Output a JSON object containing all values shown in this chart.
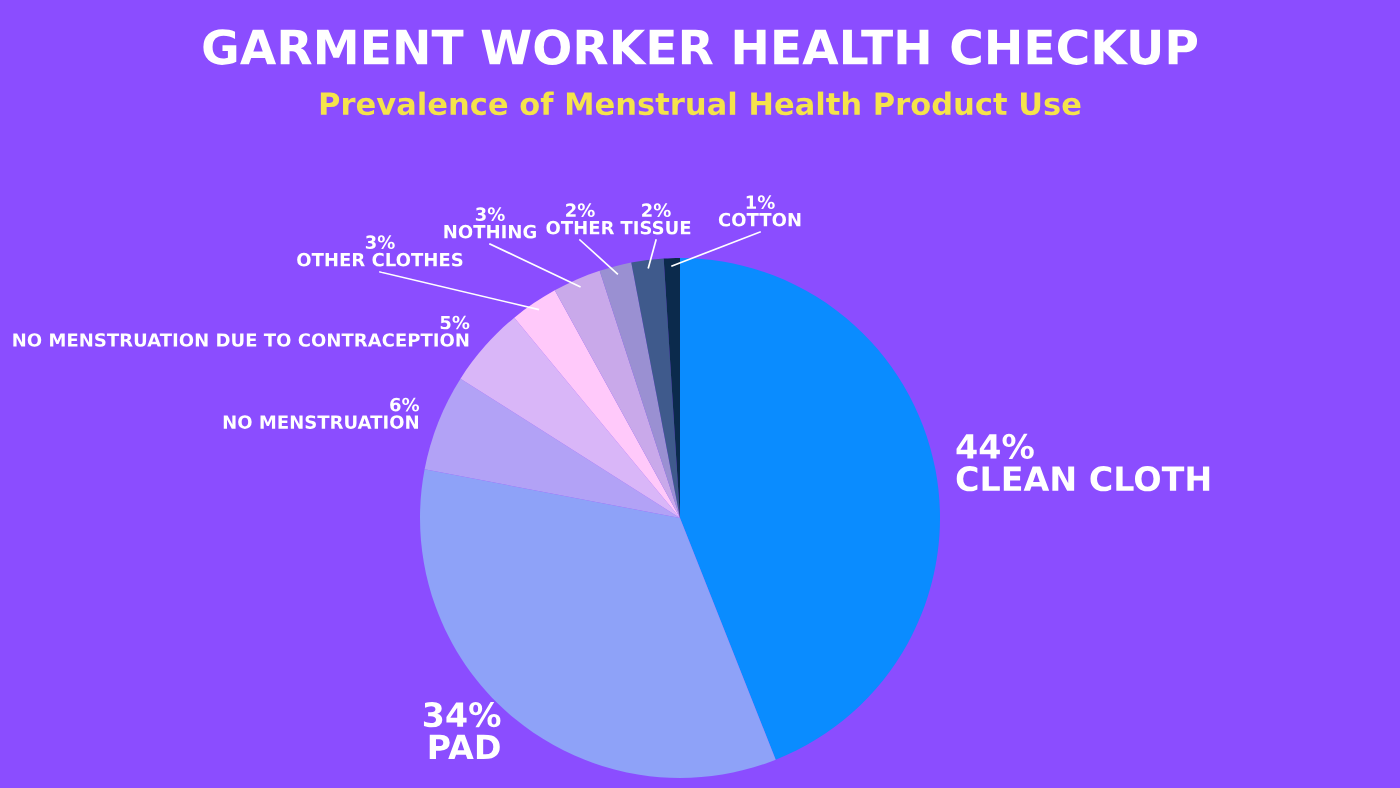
{
  "chart_data": {
    "type": "pie",
    "title": "GARMENT WORKER HEALTH CHECKUP",
    "subtitle": "Prevalence of Menstrual Health Product Use",
    "categories": [
      "CLEAN CLOTH",
      "PAD",
      "NO MENSTRUATION",
      "NO MENSTRUATION DUE TO CONTRACEPTION",
      "OTHER CLOTHES",
      "NOTHING",
      "OTHER",
      "TISSUE",
      "COTTON"
    ],
    "values": [
      44,
      34,
      6,
      5,
      3,
      3,
      2,
      2,
      1
    ],
    "value_labels": [
      "44%",
      "34%",
      "6%",
      "5%",
      "3%",
      "3%",
      "2%",
      "2%",
      "1%"
    ],
    "colors": [
      "#0a8cff",
      "#8ea2f8",
      "#b2a2f6",
      "#d9b6f8",
      "#ffc9fa",
      "#c9a9ea",
      "#9a90d2",
      "#3f5a8c",
      "#0b2a4c"
    ],
    "legend": false
  }
}
